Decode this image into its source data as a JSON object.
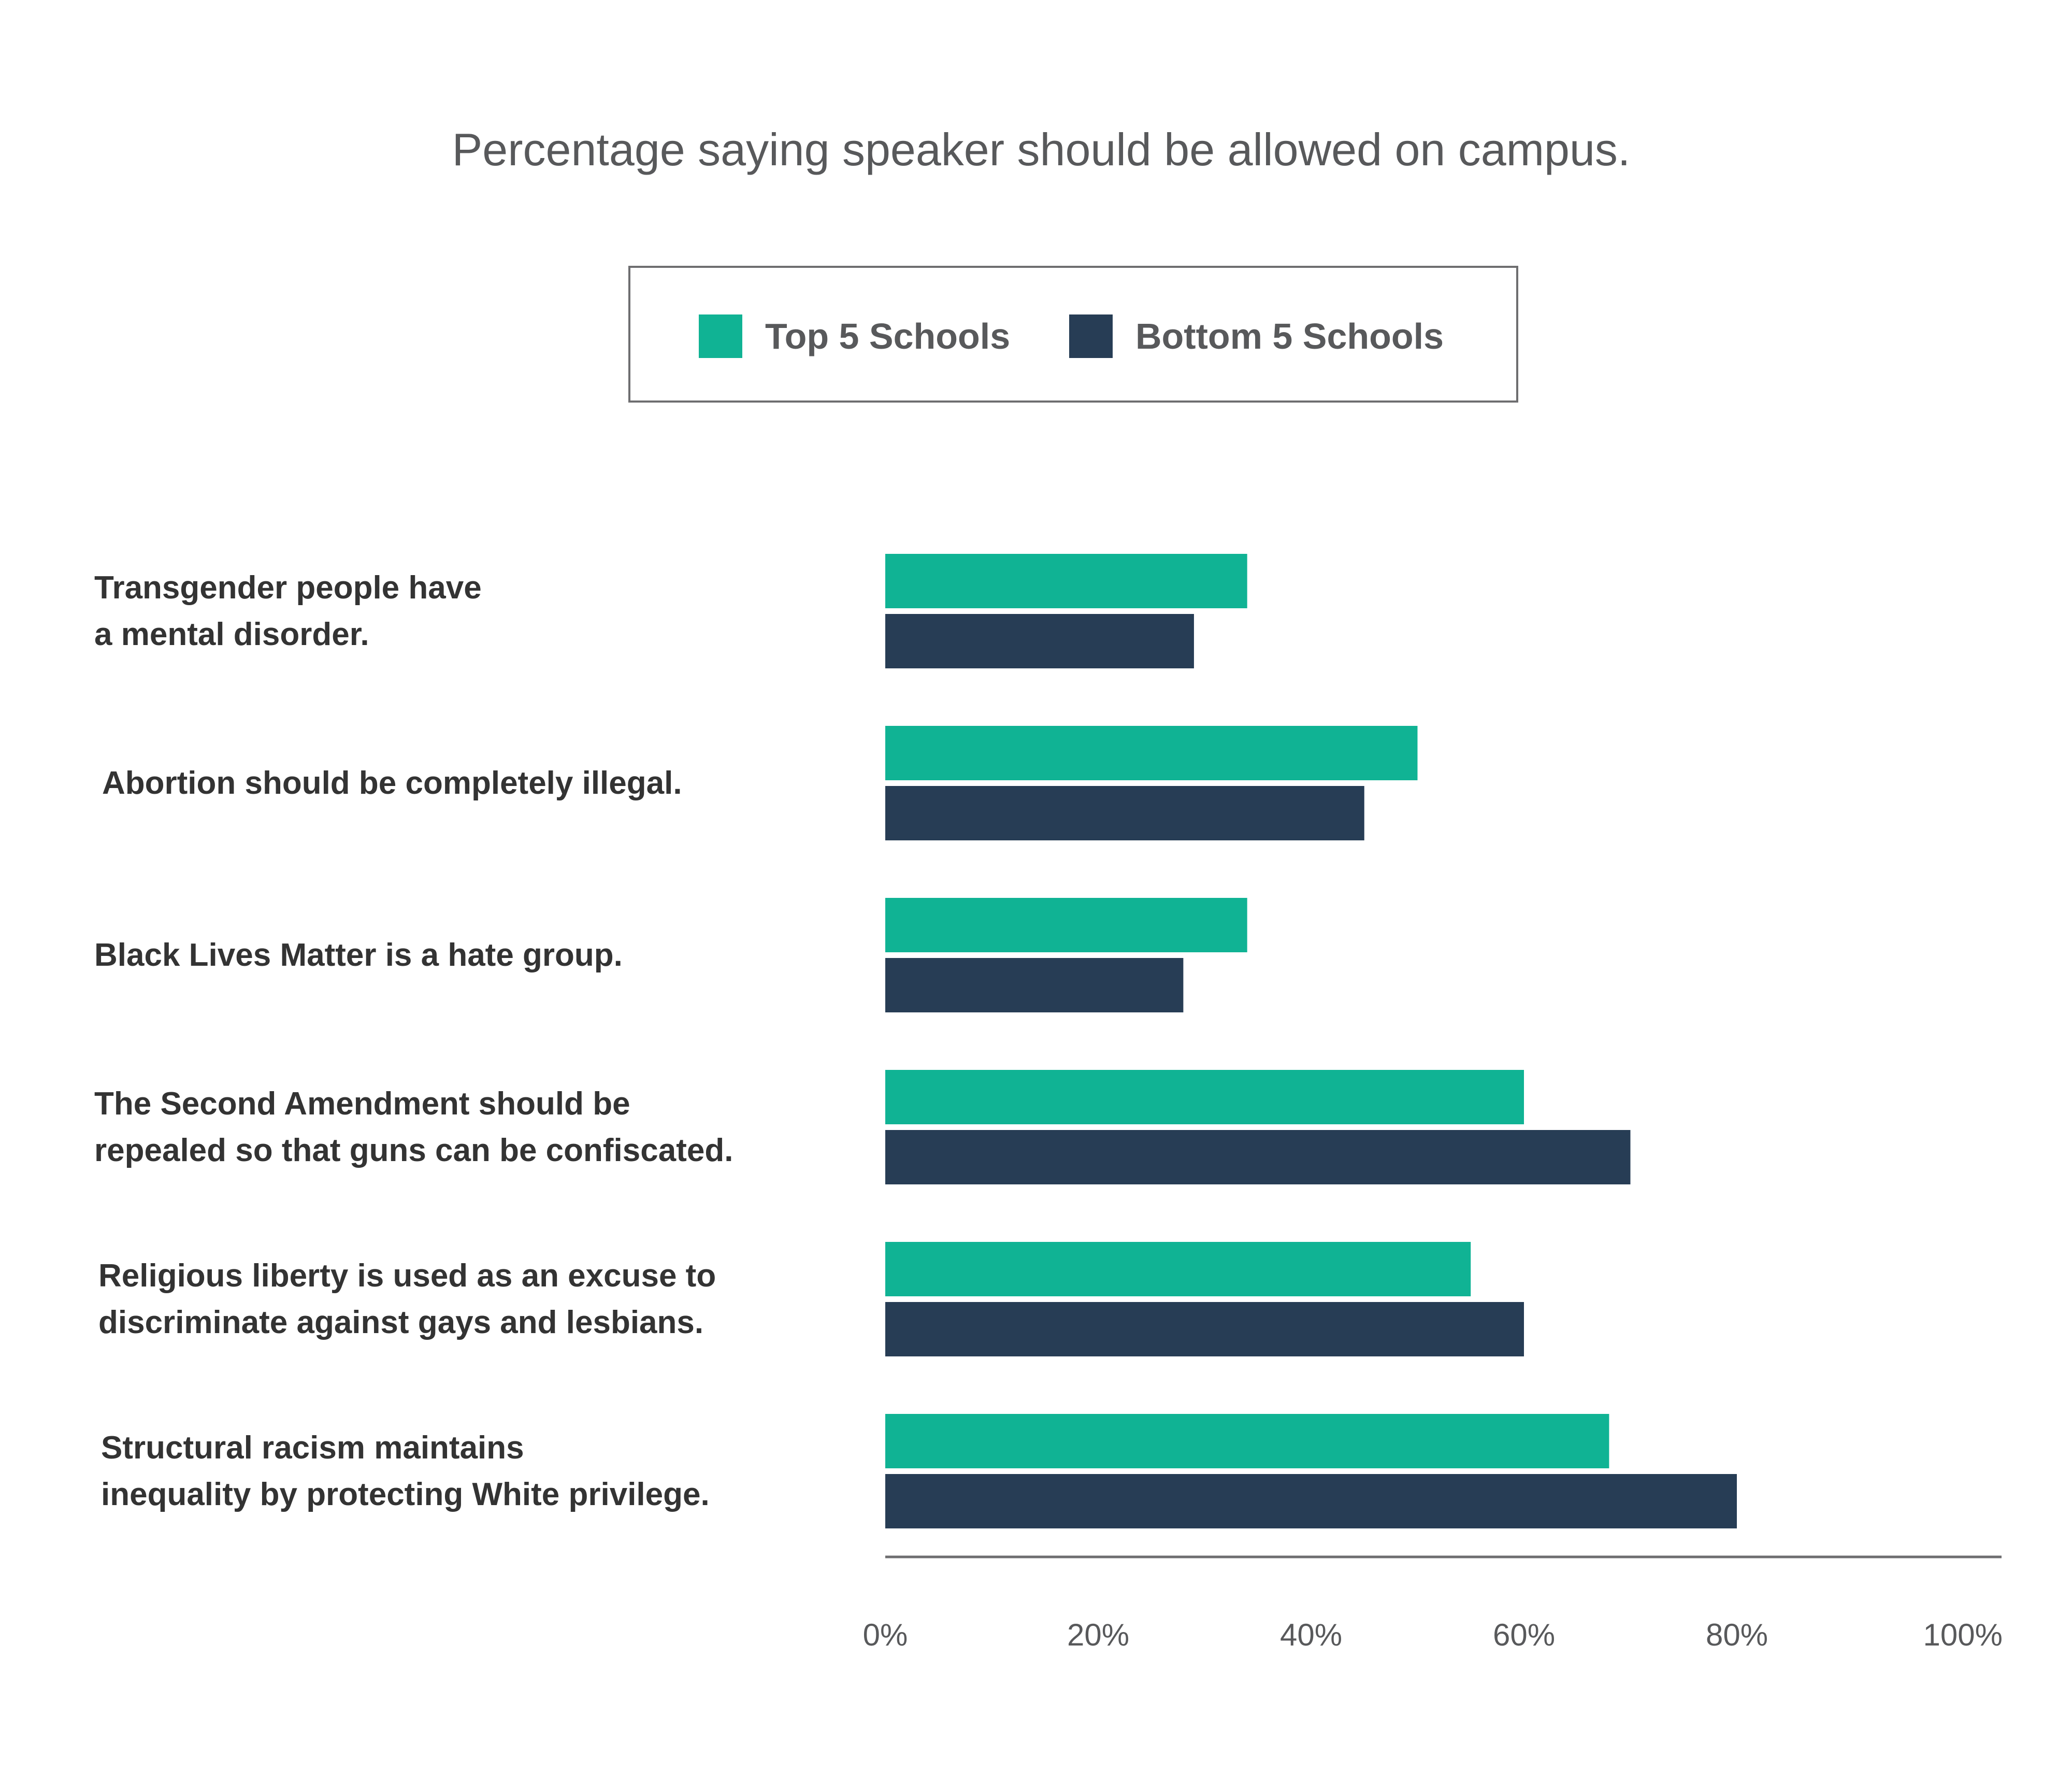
{
  "colors": {
    "top": "#10b394",
    "bottom": "#273d55",
    "axis": "#6e6e70",
    "title": "#58595b",
    "label": "#333333"
  },
  "chart_data": {
    "type": "bar",
    "orientation": "horizontal",
    "title": "Percentage saying speaker should be allowed on campus.",
    "xlabel": "",
    "ylabel": "",
    "xlim": [
      0,
      100
    ],
    "grid": false,
    "legend_placement": "top-center",
    "legend": [
      "Top 5 Schools",
      "Bottom 5 Schools"
    ],
    "categories": [
      [
        "Transgender people have",
        "a mental disorder."
      ],
      [
        "Abortion should be completely illegal."
      ],
      [
        "Black Lives Matter is a hate group."
      ],
      [
        "The Second Amendment should be",
        "repealed so that guns can be confiscated."
      ],
      [
        "Religious liberty is used as an excuse to",
        "discriminate against gays and lesbians."
      ],
      [
        "Structural racism maintains",
        "inequality by protecting White privilege."
      ]
    ],
    "series": [
      {
        "name": "Top 5 Schools",
        "values": [
          34,
          50,
          34,
          60,
          55,
          68
        ]
      },
      {
        "name": "Bottom 5 Schools",
        "values": [
          29,
          45,
          28,
          70,
          60,
          80
        ]
      }
    ],
    "x_ticks": [
      "0%",
      "20%",
      "40%",
      "60%",
      "80%",
      "100%"
    ],
    "x_tick_values": [
      0,
      20,
      40,
      60,
      80,
      100
    ]
  }
}
